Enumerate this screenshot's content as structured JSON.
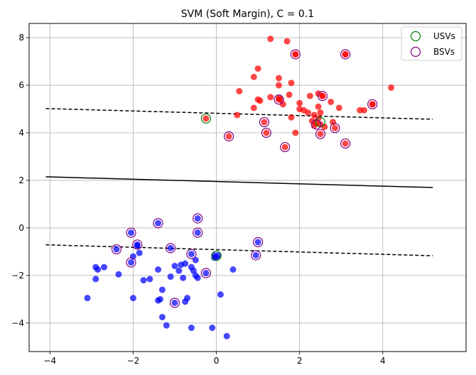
{
  "chart_data": {
    "type": "scatter",
    "title": "SVM (Soft Margin), C = 0.1",
    "xlabel": "",
    "ylabel": "",
    "xlim": [
      -4.5,
      6.0
    ],
    "ylim": [
      -5.2,
      8.6
    ],
    "xticks": [
      -4,
      -2,
      0,
      2,
      4
    ],
    "yticks": [
      -4,
      -2,
      0,
      2,
      4,
      6,
      8
    ],
    "grid": true,
    "legend_position": "top-right",
    "colors": {
      "class_positive": "#ff0000",
      "class_negative": "#0000ff",
      "usv_ring": "#008000",
      "bsv_ring": "#800080",
      "boundary": "#000000"
    },
    "legend": [
      {
        "label": "USVs",
        "color": "#008000"
      },
      {
        "label": "BSVs",
        "color": "#800080"
      }
    ],
    "decision_boundary": {
      "x": [
        -4.1,
        5.2
      ],
      "y": [
        2.15,
        1.7
      ]
    },
    "margin_upper": {
      "x": [
        -4.1,
        5.2
      ],
      "y": [
        5.02,
        4.57
      ]
    },
    "margin_lower": {
      "x": [
        -4.1,
        5.2
      ],
      "y": [
        -0.71,
        -1.17
      ]
    },
    "series": [
      {
        "class": "positive",
        "color": "#ff0000",
        "x": [
          1.3,
          1.7,
          1.9,
          3.1,
          0.9,
          1.0,
          1.5,
          1.5,
          1.8,
          1.0,
          1.3,
          1.05,
          0.9,
          0.55,
          0.5,
          1.6,
          1.5,
          2.0,
          2.0,
          2.25,
          2.45,
          2.55,
          2.75,
          2.95,
          2.2,
          2.35,
          2.3,
          2.45,
          1.55,
          2.5,
          2.6,
          2.8,
          3.45,
          3.55,
          3.75,
          4.2,
          2.5,
          1.8,
          1.75,
          2.45,
          2.4,
          2.35,
          1.9,
          2.1,
          -0.25,
          0.3,
          1.15,
          1.2,
          1.65,
          2.5,
          2.85,
          3.1,
          1.9,
          3.1,
          2.55,
          1.5,
          3.75
        ],
        "y": [
          7.95,
          7.85,
          7.3,
          7.3,
          6.35,
          6.7,
          6.3,
          6.0,
          6.1,
          5.4,
          5.5,
          5.35,
          5.05,
          5.75,
          4.75,
          5.2,
          5.45,
          5.25,
          5.0,
          5.55,
          5.65,
          5.55,
          5.3,
          5.05,
          4.85,
          4.75,
          4.5,
          4.6,
          5.4,
          4.35,
          4.25,
          4.45,
          4.95,
          4.95,
          5.2,
          5.9,
          4.85,
          4.65,
          5.6,
          5.1,
          4.4,
          4.3,
          4.0,
          4.95,
          4.6,
          3.85,
          4.45,
          4.0,
          3.4,
          3.95,
          4.2,
          3.55,
          7.3,
          7.3,
          5.55,
          5.4,
          5.2
        ]
      },
      {
        "class": "negative",
        "color": "#0000ff",
        "x": [
          -3.1,
          -2.9,
          -2.85,
          -2.9,
          -2.7,
          -2.35,
          -2.0,
          -2.0,
          -1.9,
          -1.85,
          -1.75,
          -1.6,
          -1.4,
          -1.4,
          -1.3,
          -1.3,
          -1.35,
          -1.2,
          -1.1,
          -1.0,
          -0.9,
          -0.8,
          -0.75,
          -0.7,
          -0.6,
          -0.55,
          -0.5,
          -0.5,
          -0.45,
          -0.85,
          -0.75,
          -0.6,
          -0.1,
          0.0,
          0.1,
          0.25,
          0.4,
          0.05,
          -0.05,
          -0.6,
          -1.1,
          -1.4,
          -1.9,
          -2.05,
          -2.05,
          -2.4,
          -0.45,
          -0.45,
          -0.25,
          1.0,
          0.95,
          -1.0,
          -0.05
        ],
        "y": [
          -2.95,
          -2.15,
          -1.75,
          -1.65,
          -1.65,
          -1.95,
          -1.2,
          -2.95,
          -0.75,
          -1.05,
          -2.2,
          -2.15,
          -1.75,
          -3.05,
          -2.6,
          -3.75,
          -3.0,
          -4.1,
          -2.05,
          -1.6,
          -1.8,
          -2.1,
          -3.1,
          -2.95,
          -1.65,
          -1.8,
          -2.0,
          -1.35,
          -2.1,
          -1.55,
          -1.5,
          -4.2,
          -4.2,
          -1.25,
          -2.8,
          -4.55,
          -1.75,
          -1.15,
          -1.15,
          -1.1,
          -0.85,
          0.2,
          -0.7,
          -0.2,
          -1.45,
          -0.9,
          0.4,
          -0.2,
          -1.9,
          -0.6,
          -1.15,
          -3.15,
          -1.25
        ]
      }
    ],
    "usvs": {
      "x": [
        -0.25,
        2.5,
        0.0
      ],
      "y": [
        4.6,
        4.45,
        -1.17
      ]
    },
    "bsvs": {
      "x": [
        0.3,
        1.15,
        1.2,
        1.65,
        2.4,
        2.5,
        2.85,
        3.1,
        1.9,
        3.1,
        2.55,
        1.5,
        3.75,
        -2.4,
        -2.05,
        -2.05,
        -1.9,
        -1.4,
        -1.1,
        -0.6,
        -0.45,
        -0.45,
        -0.25,
        1.0,
        0.95,
        -1.0
      ],
      "y": [
        3.85,
        4.45,
        4.0,
        3.4,
        4.35,
        3.95,
        4.2,
        3.55,
        7.3,
        7.3,
        5.55,
        5.4,
        5.2,
        -0.9,
        -0.2,
        -1.45,
        -0.7,
        0.2,
        -0.85,
        -1.1,
        0.4,
        -0.2,
        -1.9,
        -0.6,
        -1.15,
        -3.15
      ]
    }
  }
}
